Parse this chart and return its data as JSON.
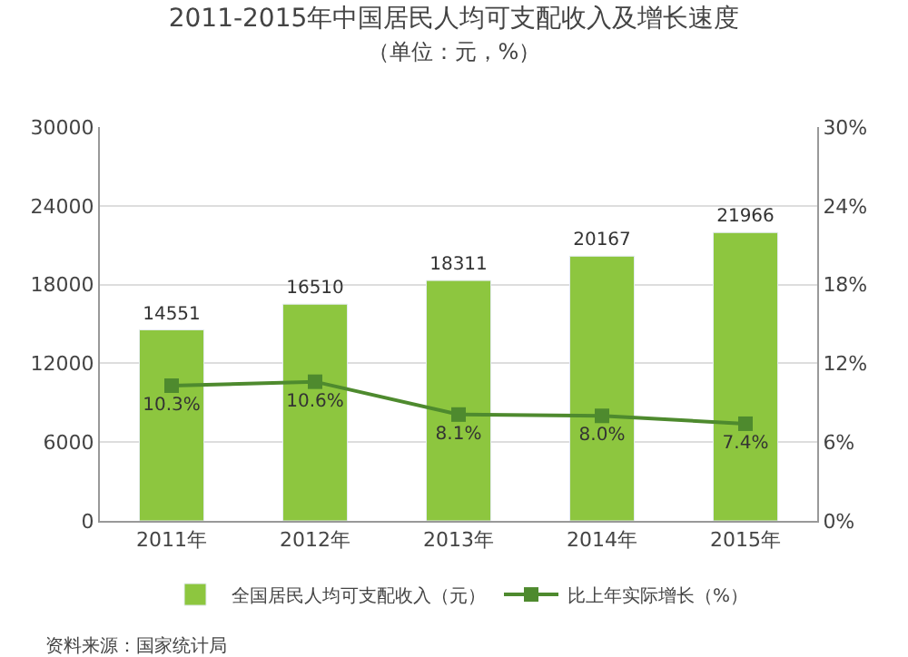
{
  "chart_data": {
    "type": "bar",
    "title": "2011-2015年中国居民人均可支配收入及增长速度",
    "subtitle": "（单位：元，%）",
    "categories": [
      "2011年",
      "2012年",
      "2013年",
      "2014年",
      "2015年"
    ],
    "series": [
      {
        "name": "全国居民人均可支配收入（元）",
        "color": "#8dc63f",
        "values": [
          14551,
          16510,
          18311,
          20167,
          21966
        ],
        "value_labels": [
          "14551",
          "16510",
          "18311",
          "20167",
          "21966"
        ]
      },
      {
        "name": "比上年实际增长（%）",
        "type": "line",
        "axis": "y2",
        "color": "#4e8a2e",
        "marker": "square",
        "values": [
          10.3,
          10.6,
          8.1,
          8.0,
          7.4
        ],
        "value_labels": [
          "10.3%",
          "10.6%",
          "8.1%",
          "8.0%",
          "7.4%"
        ]
      }
    ],
    "ylim": [
      0,
      30000
    ],
    "yticks": [
      0,
      6000,
      12000,
      18000,
      24000,
      30000
    ],
    "y2lim": [
      0,
      30
    ],
    "y2ticks": [
      {
        "value": 0,
        "label": "0%"
      },
      {
        "value": 6,
        "label": "6%"
      },
      {
        "value": 12,
        "label": "12%"
      },
      {
        "value": 18,
        "label": "18%"
      },
      {
        "value": 24,
        "label": "24%"
      },
      {
        "value": 30,
        "label": "30%"
      }
    ],
    "grid": "y",
    "legend": "bottom",
    "annotations": [
      "资料来源：国家统计局"
    ]
  }
}
